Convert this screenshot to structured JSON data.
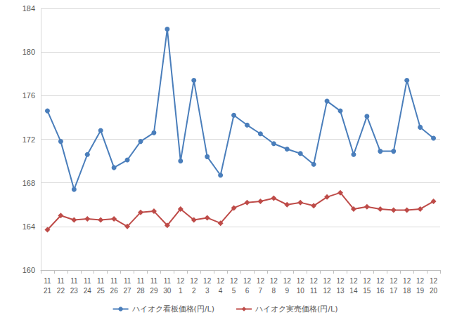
{
  "chart_data": {
    "type": "line",
    "categories": [
      "11\n21",
      "11\n22",
      "11\n23",
      "11\n24",
      "11\n25",
      "11\n26",
      "11\n27",
      "11\n28",
      "11\n29",
      "11\n30",
      "12\n1",
      "12\n2",
      "12\n3",
      "12\n4",
      "12\n5",
      "12\n6",
      "12\n7",
      "12\n8",
      "12\n9",
      "12\n10",
      "12\n11",
      "12\n12",
      "12\n13",
      "12\n14",
      "12\n15",
      "12\n16",
      "12\n17",
      "12\n18",
      "12\n19",
      "12\n20"
    ],
    "series": [
      {
        "name": "ハイオク看板価格(円/L)",
        "color": "#4a7ebb",
        "marker": "circle",
        "values": [
          174.6,
          171.8,
          167.4,
          170.6,
          172.8,
          169.4,
          170.1,
          171.8,
          172.6,
          182.1,
          170.0,
          177.4,
          170.4,
          168.7,
          174.2,
          173.3,
          172.5,
          171.6,
          171.1,
          170.7,
          169.7,
          175.5,
          174.6,
          170.6,
          174.1,
          170.9,
          170.9,
          177.4,
          173.1,
          172.1
        ]
      },
      {
        "name": "ハイオク実売価格(円/L)",
        "color": "#be4b48",
        "marker": "diamond",
        "values": [
          163.7,
          165.0,
          164.6,
          164.7,
          164.6,
          164.7,
          164.0,
          165.3,
          165.4,
          164.1,
          165.6,
          164.6,
          164.8,
          164.3,
          165.7,
          166.2,
          166.3,
          166.6,
          166.0,
          166.2,
          165.9,
          166.7,
          167.1,
          165.6,
          165.8,
          165.6,
          165.5,
          165.5,
          165.6,
          166.3
        ]
      }
    ],
    "ylim": [
      160,
      184
    ],
    "yticks": [
      160,
      164,
      168,
      172,
      176,
      180,
      184
    ],
    "grid": true,
    "legend": "bottom"
  }
}
